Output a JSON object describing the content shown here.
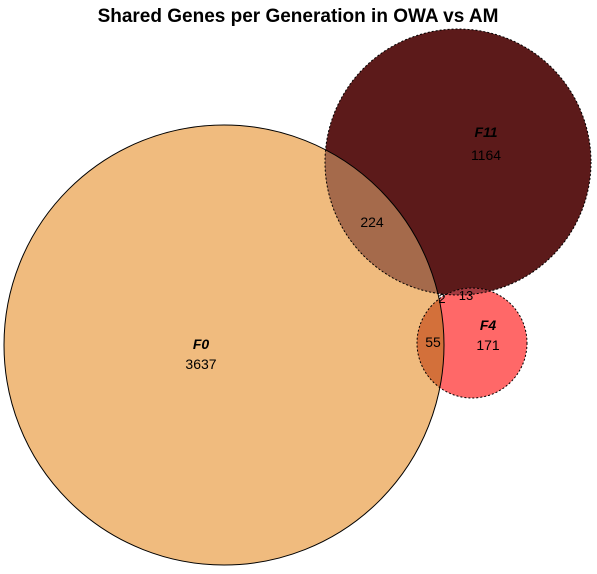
{
  "title": "Shared Genes per Generation in OWA vs AM",
  "sets": [
    {
      "id": "F0",
      "name": "F0",
      "count": "3637",
      "color": "#F0BB7E"
    },
    {
      "id": "F11",
      "name": "F11",
      "count": "1164",
      "color": "#5C1A1A"
    },
    {
      "id": "F4",
      "name": "F4",
      "count": "171",
      "color": "#FF6868"
    }
  ],
  "intersections": {
    "F0_F11": "224",
    "F0_F4": "55",
    "F11_F4": "13",
    "F0_F11_F4": "2"
  },
  "colors": {
    "F0_F11": "#A56A4B",
    "F0_F4": "#D3703A",
    "F11_F4": "#A33A3F",
    "F0_F11_F4": "#8A4A3A"
  }
}
